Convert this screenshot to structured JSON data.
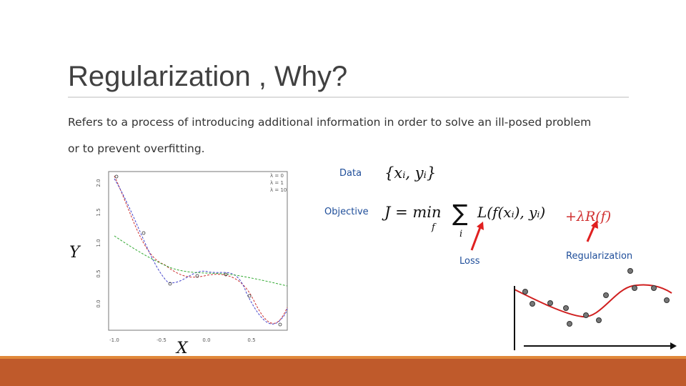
{
  "title": "Regularization , Why?",
  "body": {
    "line1": "Refers to a process of introducing additional information in order to solve an ill-posed problem",
    "line2": "or to prevent overfitting."
  },
  "figure": {
    "legend": [
      "λ = 0",
      "λ = 1",
      "λ = 10"
    ],
    "xticks": [
      "-1.0",
      "-0.5",
      "0.0",
      "0.5"
    ],
    "yticks": [
      "2.0",
      "1.5",
      "1.0",
      "0.5",
      "0.0"
    ],
    "ylabel": "Y",
    "xlabel": "X"
  },
  "labels": {
    "data": "Data",
    "objective": "Objective",
    "loss": "Loss",
    "regularization": "Regularization"
  },
  "formulas": {
    "data": "{xᵢ, yᵢ}",
    "objective": {
      "lhs": "J = min",
      "under_min": "f",
      "sum": "∑",
      "under_sum": "i",
      "loss": "L(f(xᵢ), yᵢ)",
      "penalty": "+λR(f)"
    }
  }
}
